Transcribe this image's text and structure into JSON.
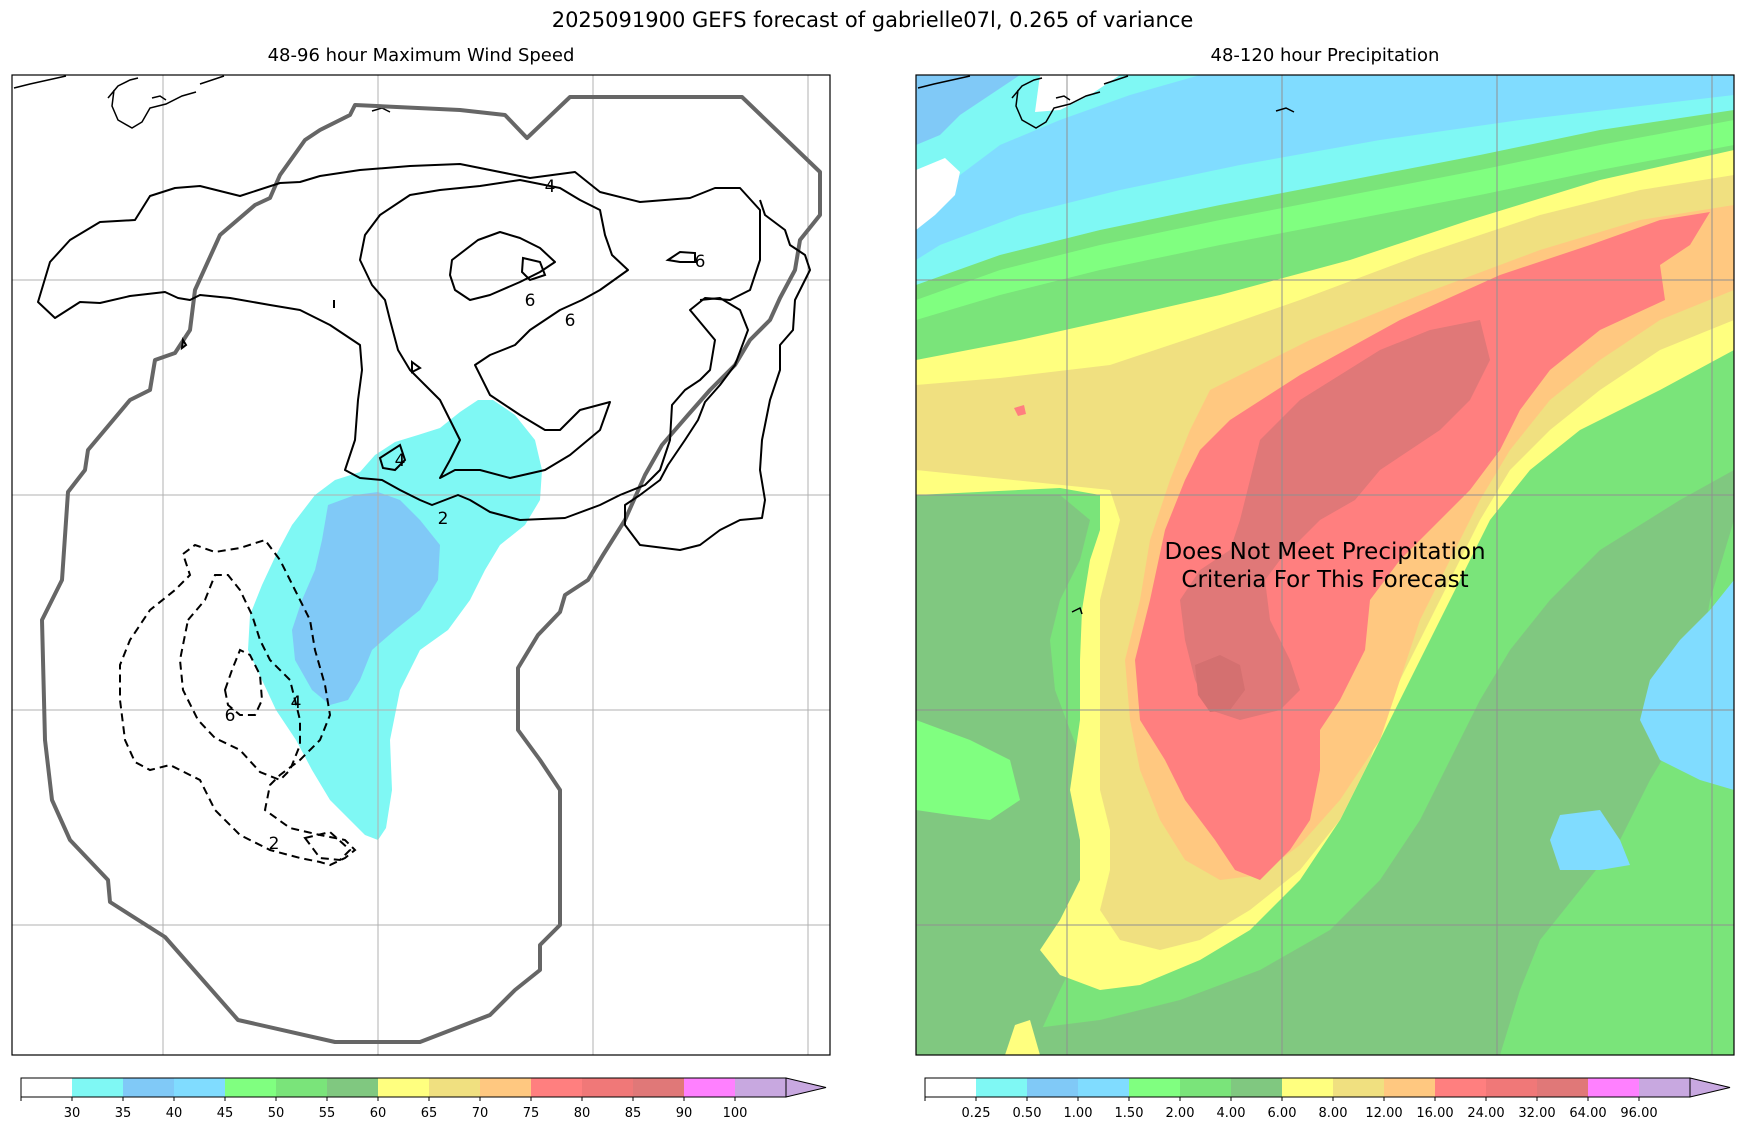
{
  "figure": {
    "suptitle": "2025091900 GEFS forecast of gabrielle07l, 0.265 of variance"
  },
  "left_panel": {
    "title": "48-96 hour Maximum Wind Speed",
    "colorbar": {
      "colors": [
        "#ffffff",
        "#7ff8f4",
        "#80c9f7",
        "#80dcff",
        "#80ff80",
        "#7ae47a",
        "#80c880",
        "#ffff7f",
        "#f0e080",
        "#ffc880",
        "#ff7f7f",
        "#f07878",
        "#e07878",
        "#ff80ff",
        "#c8a8e0"
      ],
      "ticks": [
        "30",
        "35",
        "40",
        "45",
        "50",
        "55",
        "60",
        "65",
        "70",
        "75",
        "80",
        "85",
        "90",
        "100"
      ]
    }
  },
  "right_panel": {
    "title": "48-120 hour Precipitation",
    "annotation_line1": "Does Not Meet Precipitation",
    "annotation_line2": "Criteria For This Forecast",
    "colorbar": {
      "colors": [
        "#ffffff",
        "#7ff8f4",
        "#80c9f7",
        "#80dcff",
        "#80ff80",
        "#7ae47a",
        "#80c880",
        "#ffff7f",
        "#f0e080",
        "#ffc880",
        "#ff7f7f",
        "#f07878",
        "#e07878",
        "#ff80ff",
        "#c8a8e0"
      ],
      "ticks": [
        "0.25",
        "0.50",
        "1.00",
        "1.50",
        "2.00",
        "4.00",
        "6.00",
        "8.00",
        "12.00",
        "16.00",
        "24.00",
        "32.00",
        "64.00",
        "96.00"
      ]
    }
  },
  "chart_data": [
    {
      "type": "contour",
      "title": "48-96 hour Maximum Wind Speed",
      "grid": true,
      "contour_labels": [
        "4",
        "6",
        "6",
        "6",
        "4",
        "2",
        "6",
        "4",
        "2"
      ],
      "colorbar_levels": [
        30,
        35,
        40,
        45,
        50,
        55,
        60,
        65,
        70,
        75,
        80,
        85,
        90,
        100
      ]
    },
    {
      "type": "heatmap",
      "title": "48-120 hour Precipitation",
      "grid": true,
      "colorbar_levels": [
        0.25,
        0.5,
        1.0,
        1.5,
        2.0,
        4.0,
        6.0,
        8.0,
        12.0,
        16.0,
        24.0,
        32.0,
        64.0,
        96.0
      ]
    }
  ]
}
